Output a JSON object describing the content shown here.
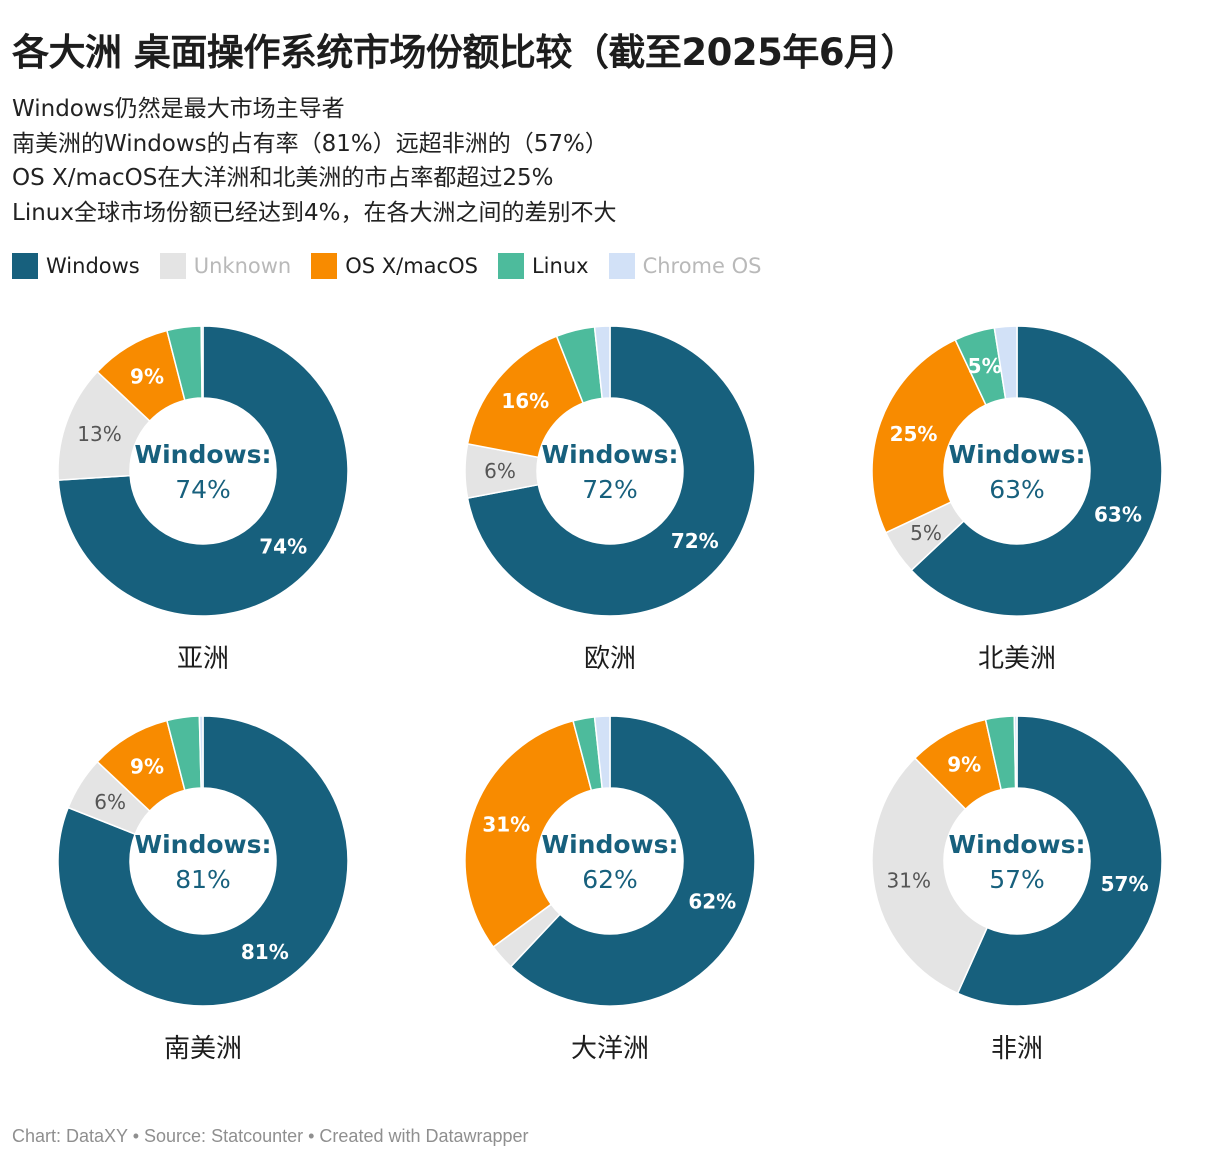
{
  "title": "各大洲 桌面操作系统市场份额比较（截至2025年6月）",
  "subtitle": [
    "Windows仍然是最大市场主导者",
    "南美洲的Windows的占有率（81%）远超非洲的（57%）",
    "OS X/macOS在大洋洲和北美洲的市占率都超过25%",
    "Linux全球市场份额已经达到4%，在各大洲之间的差别不大"
  ],
  "legend": [
    {
      "label": "Windows",
      "color": "#17607d",
      "text_color": "#1d1d1d"
    },
    {
      "label": "Unknown",
      "color": "#e4e4e4",
      "text_color": "#b9b9b9"
    },
    {
      "label": "OS X/macOS",
      "color": "#f88b00",
      "text_color": "#1d1d1d"
    },
    {
      "label": "Linux",
      "color": "#4dbb9c",
      "text_color": "#1d1d1d"
    },
    {
      "label": "Chrome OS",
      "color": "#d2e1f7",
      "text_color": "#b9b9b9"
    }
  ],
  "center_label": "Windows:",
  "footer": "Chart: DataXY • Source: Statcounter • Created with Datawrapper",
  "chart_data": [
    {
      "type": "pie",
      "title": "亚洲",
      "center_value": "74%",
      "categories": [
        "Windows",
        "Unknown",
        "OS X/macOS",
        "Linux",
        "Chrome OS"
      ],
      "values": [
        74,
        13,
        9,
        3.8,
        0.2
      ],
      "labels": [
        "74%",
        "13%",
        "9%",
        "",
        ""
      ]
    },
    {
      "type": "pie",
      "title": "欧洲",
      "center_value": "72%",
      "categories": [
        "Windows",
        "Unknown",
        "OS X/macOS",
        "Linux",
        "Chrome OS"
      ],
      "values": [
        72,
        6,
        16,
        4.3,
        1.7
      ],
      "labels": [
        "72%",
        "6%",
        "16%",
        "",
        ""
      ]
    },
    {
      "type": "pie",
      "title": "北美洲",
      "center_value": "63%",
      "categories": [
        "Windows",
        "Unknown",
        "OS X/macOS",
        "Linux",
        "Chrome OS"
      ],
      "values": [
        63,
        5,
        25,
        4.5,
        2.5
      ],
      "labels": [
        "63%",
        "5%",
        "25%",
        "5%",
        ""
      ]
    },
    {
      "type": "pie",
      "title": "南美洲",
      "center_value": "81%",
      "categories": [
        "Windows",
        "Unknown",
        "OS X/macOS",
        "Linux",
        "Chrome OS"
      ],
      "values": [
        81,
        6,
        9,
        3.6,
        0.4
      ],
      "labels": [
        "81%",
        "6%",
        "9%",
        "",
        ""
      ]
    },
    {
      "type": "pie",
      "title": "大洋洲",
      "center_value": "62%",
      "categories": [
        "Windows",
        "Unknown",
        "OS X/macOS",
        "Linux",
        "Chrome OS"
      ],
      "values": [
        62,
        2.9,
        31,
        2.4,
        1.7
      ],
      "labels": [
        "62%",
        "",
        "31%",
        "",
        ""
      ]
    },
    {
      "type": "pie",
      "title": "非洲",
      "center_value": "57%",
      "categories": [
        "Windows",
        "Unknown",
        "OS X/macOS",
        "Linux",
        "Chrome OS"
      ],
      "values": [
        57,
        31,
        9,
        3.2,
        0.3
      ],
      "labels": [
        "57%",
        "31%",
        "9%",
        "",
        ""
      ]
    }
  ]
}
